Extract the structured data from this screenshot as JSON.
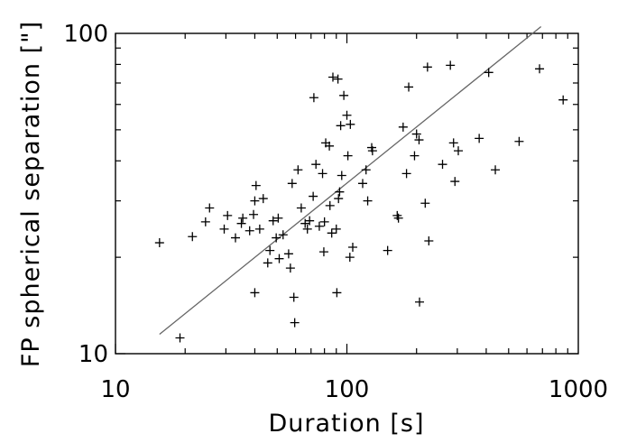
{
  "chart_data": {
    "type": "scatter",
    "title": "",
    "xlabel": "Duration [s]",
    "ylabel": "FP spherical separation [\"]",
    "xscale": "log",
    "yscale": "log",
    "xlim": [
      10,
      1000
    ],
    "ylim": [
      10,
      100
    ],
    "grid": false,
    "x_ticks": [
      {
        "value": 10,
        "label": "10"
      },
      {
        "value": 100,
        "label": "100"
      },
      {
        "value": 1000,
        "label": "1000"
      }
    ],
    "y_ticks": [
      {
        "value": 10,
        "label": "10"
      },
      {
        "value": 100,
        "label": "100"
      }
    ],
    "marker": "plus",
    "series": [
      {
        "name": "",
        "points": [
          [
            15.5,
            22.2
          ],
          [
            19,
            11.2
          ],
          [
            21.5,
            23.2
          ],
          [
            24.5,
            25.8
          ],
          [
            25.5,
            28.5
          ],
          [
            29.5,
            24.5
          ],
          [
            30.5,
            27
          ],
          [
            33,
            23
          ],
          [
            35,
            25.5
          ],
          [
            35.5,
            26.5
          ],
          [
            38,
            24.2
          ],
          [
            39.5,
            27.2
          ],
          [
            40,
            30
          ],
          [
            40.5,
            33.5
          ],
          [
            40,
            15.5
          ],
          [
            42,
            24.5
          ],
          [
            43.5,
            30.5
          ],
          [
            45.5,
            19.2
          ],
          [
            46.5,
            21
          ],
          [
            48,
            26
          ],
          [
            49.5,
            23
          ],
          [
            50.5,
            26.5
          ],
          [
            51,
            19.8
          ],
          [
            53,
            23.5
          ],
          [
            56,
            20.5
          ],
          [
            57,
            18.5
          ],
          [
            58,
            34
          ],
          [
            59,
            15
          ],
          [
            59.5,
            12.5
          ],
          [
            61.5,
            37.5
          ],
          [
            63.5,
            28.5
          ],
          [
            66,
            25.5
          ],
          [
            67.5,
            24.5
          ],
          [
            69,
            26
          ],
          [
            71.5,
            31
          ],
          [
            72,
            63
          ],
          [
            73.5,
            39
          ],
          [
            76,
            25
          ],
          [
            78.5,
            36.5
          ],
          [
            79.5,
            20.8
          ],
          [
            80,
            25.8
          ],
          [
            81,
            45.5
          ],
          [
            84,
            44.5
          ],
          [
            84.5,
            29
          ],
          [
            86,
            23.8
          ],
          [
            87,
            73
          ],
          [
            90,
            24.5
          ],
          [
            90.5,
            15.5
          ],
          [
            91.5,
            72
          ],
          [
            92,
            30.5
          ],
          [
            93,
            32
          ],
          [
            94,
            51.5
          ],
          [
            95,
            36
          ],
          [
            97,
            64
          ],
          [
            100,
            55.5
          ],
          [
            101,
            41.5
          ],
          [
            103.5,
            52
          ],
          [
            103,
            20
          ],
          [
            106,
            21.5
          ],
          [
            117,
            34
          ],
          [
            121,
            37.5
          ],
          [
            123,
            30
          ],
          [
            128,
            44
          ],
          [
            129,
            43
          ],
          [
            150,
            21
          ],
          [
            165,
            27
          ],
          [
            167,
            26.5
          ],
          [
            175,
            51
          ],
          [
            181,
            36.5
          ],
          [
            185,
            68
          ],
          [
            196,
            41.5
          ],
          [
            200,
            48.5
          ],
          [
            205,
            46.5
          ],
          [
            206,
            14.5
          ],
          [
            218,
            29.5
          ],
          [
            223,
            78.5
          ],
          [
            226,
            22.5
          ],
          [
            259,
            39
          ],
          [
            280,
            79.5
          ],
          [
            289,
            45.5
          ],
          [
            293,
            34.5
          ],
          [
            303,
            43
          ],
          [
            373,
            47
          ],
          [
            410,
            75.5
          ],
          [
            438,
            37.5
          ],
          [
            555,
            46
          ],
          [
            680,
            77.5
          ],
          [
            860,
            62
          ]
        ]
      }
    ],
    "fit_line": {
      "from": [
        15.5,
        11.5
      ],
      "to": [
        690,
        105
      ]
    },
    "colors": {
      "markers": "#000000",
      "fit_line": "#666666",
      "axes": "#000000"
    }
  }
}
